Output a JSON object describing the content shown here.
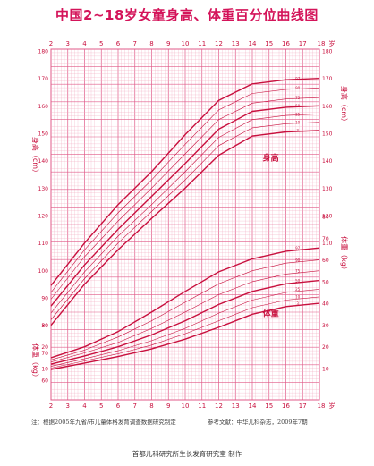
{
  "title": "中国2~18岁女童身高、体重百分位曲线图",
  "footer": {
    "note_left": "注：根据2005年九省/市儿童体格发育调查数据研究制定",
    "note_right": "参考文献：中华儿科杂志，2009年7期",
    "credit": "首都儿科研究所生长发育研究室  制作"
  },
  "colors": {
    "grid": "#f2a9bf",
    "grid_major": "#e05a88",
    "curve": "#c8103e",
    "text": "#c8103e"
  },
  "chart_data": {
    "type": "line",
    "x_axis": {
      "range": [
        2,
        18
      ],
      "ticks": [
        2,
        3,
        4,
        5,
        6,
        7,
        8,
        9,
        10,
        11,
        12,
        13,
        14,
        15,
        16,
        17,
        18
      ],
      "unit": "岁"
    },
    "y_left_label_height": "身高（cm）",
    "y_left_label_weight": "体重（kg）",
    "y_right_label_height": "身高（cm）",
    "y_right_label_weight": "体重（kg）",
    "y_left_ticks": [
      60,
      70,
      80,
      90,
      100,
      110,
      120,
      130,
      140,
      150,
      160,
      170,
      180
    ],
    "y_left_low_ticks": [
      10,
      20,
      30
    ],
    "y_right_height_ticks": [
      110,
      120,
      130,
      140,
      150,
      160,
      170,
      180
    ],
    "y_right_weight_ticks": [
      10,
      20,
      30,
      40,
      50,
      60,
      70,
      80
    ],
    "group_label_height": "身高",
    "group_label_weight": "体重",
    "percentiles": [
      "3",
      "10",
      "25",
      "50",
      "75",
      "90",
      "97"
    ],
    "height_series": [
      {
        "name": "3",
        "x": [
          2,
          4,
          6,
          8,
          10,
          12,
          14,
          16,
          18
        ],
        "y": [
          80.0,
          95.0,
          107.5,
          119.0,
          130.0,
          142.0,
          149.0,
          150.5,
          151.0
        ]
      },
      {
        "name": "10",
        "x": [
          2,
          4,
          6,
          8,
          10,
          12,
          14,
          16,
          18
        ],
        "y": [
          82.0,
          97.0,
          110.0,
          121.5,
          133.0,
          145.5,
          152.0,
          153.5,
          154.0
        ]
      },
      {
        "name": "25",
        "x": [
          2,
          4,
          6,
          8,
          10,
          12,
          14,
          16,
          18
        ],
        "y": [
          84.5,
          99.5,
          112.5,
          124.0,
          136.0,
          148.5,
          155.0,
          156.5,
          157.0
        ]
      },
      {
        "name": "50",
        "x": [
          2,
          4,
          6,
          8,
          10,
          12,
          14,
          16,
          18
        ],
        "y": [
          87.0,
          102.0,
          115.0,
          127.0,
          139.0,
          151.5,
          158.0,
          159.5,
          160.0
        ]
      },
      {
        "name": "75",
        "x": [
          2,
          4,
          6,
          8,
          10,
          12,
          14,
          16,
          18
        ],
        "y": [
          89.5,
          105.0,
          118.0,
          130.0,
          142.5,
          155.0,
          161.0,
          162.5,
          163.0
        ]
      },
      {
        "name": "90",
        "x": [
          2,
          4,
          6,
          8,
          10,
          12,
          14,
          16,
          18
        ],
        "y": [
          92.0,
          107.5,
          121.0,
          133.0,
          146.0,
          158.5,
          164.5,
          166.0,
          166.5
        ]
      },
      {
        "name": "97",
        "x": [
          2,
          4,
          6,
          8,
          10,
          12,
          14,
          16,
          18
        ],
        "y": [
          94.5,
          110.0,
          124.0,
          136.0,
          149.5,
          162.0,
          168.0,
          169.5,
          170.0
        ]
      }
    ],
    "weight_series": [
      {
        "name": "3",
        "x": [
          2,
          4,
          6,
          8,
          10,
          12,
          14,
          16,
          18
        ],
        "y": [
          9.6,
          12.5,
          15.5,
          19.0,
          23.5,
          29.0,
          35.0,
          38.5,
          40.0
        ]
      },
      {
        "name": "10",
        "x": [
          2,
          4,
          6,
          8,
          10,
          12,
          14,
          16,
          18
        ],
        "y": [
          10.2,
          13.5,
          16.8,
          20.8,
          26.0,
          32.0,
          38.0,
          41.5,
          43.0
        ]
      },
      {
        "name": "25",
        "x": [
          2,
          4,
          6,
          8,
          10,
          12,
          14,
          16,
          18
        ],
        "y": [
          11.0,
          14.5,
          18.2,
          22.8,
          28.5,
          35.5,
          41.5,
          45.0,
          46.5
        ]
      },
      {
        "name": "50",
        "x": [
          2,
          4,
          6,
          8,
          10,
          12,
          14,
          16,
          18
        ],
        "y": [
          12.0,
          15.8,
          20.0,
          25.5,
          32.0,
          39.5,
          45.5,
          49.0,
          50.5
        ]
      },
      {
        "name": "75",
        "x": [
          2,
          4,
          6,
          8,
          10,
          12,
          14,
          16,
          18
        ],
        "y": [
          13.0,
          17.2,
          22.0,
          28.5,
          36.0,
          44.0,
          50.0,
          53.5,
          55.0
        ]
      },
      {
        "name": "90",
        "x": [
          2,
          4,
          6,
          8,
          10,
          12,
          14,
          16,
          18
        ],
        "y": [
          14.0,
          18.5,
          24.5,
          32.0,
          40.5,
          49.0,
          55.0,
          58.5,
          60.0
        ]
      },
      {
        "name": "97",
        "x": [
          2,
          4,
          6,
          8,
          10,
          12,
          14,
          16,
          18
        ],
        "y": [
          15.0,
          20.0,
          27.0,
          36.0,
          45.5,
          54.5,
          60.5,
          64.0,
          65.5
        ]
      }
    ]
  }
}
